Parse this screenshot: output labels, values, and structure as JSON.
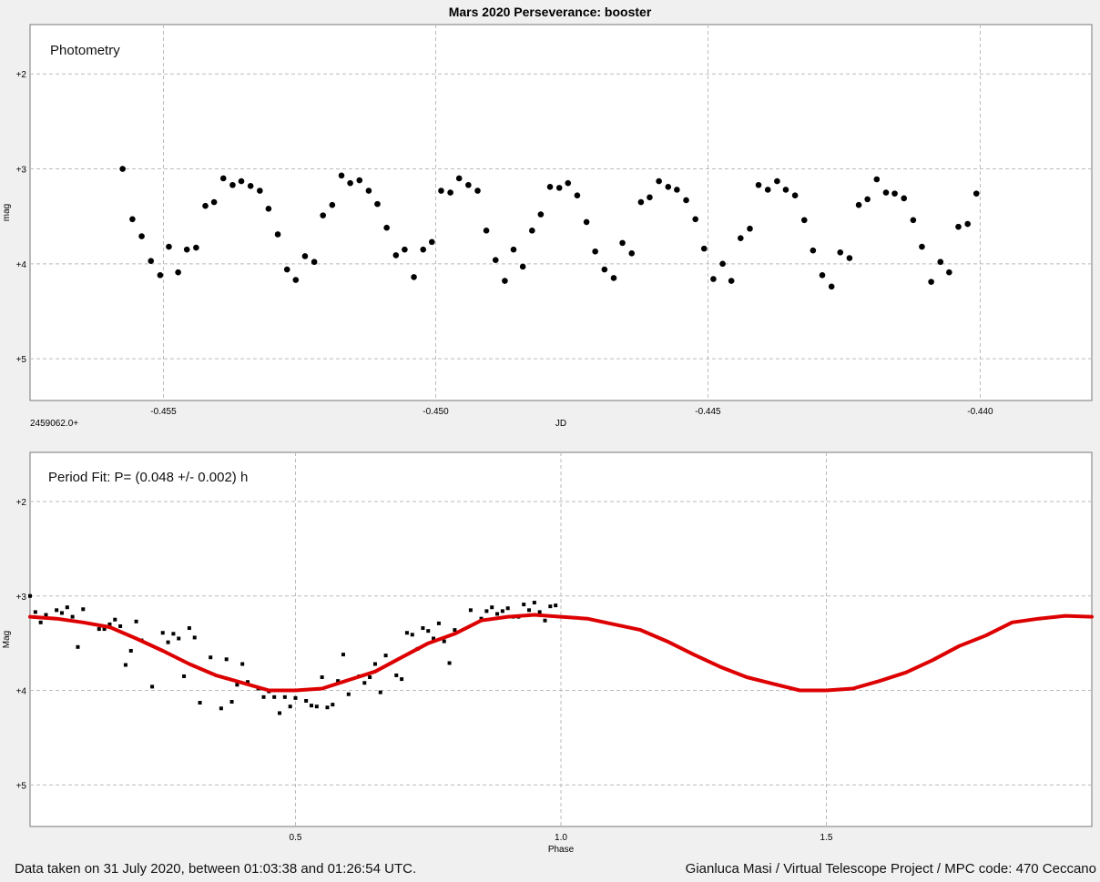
{
  "page_title": "Mars 2020 Perseverance: booster",
  "footer": {
    "left": "Data taken on 31 July 2020, between 01:03:38 and 01:26:54 UTC.",
    "right": "Gianluca Masi / Virtual Telescope Project / MPC code: 470 Ceccano"
  },
  "colors": {
    "background": "#f0f0f0",
    "plot_bg": "#ffffff",
    "points": "#000000",
    "fit": "#dd0000",
    "grid": "#bbbbbb"
  },
  "chart_data": [
    {
      "type": "scatter",
      "title": "Photometry",
      "xlabel": "JD",
      "ylabel": "mag",
      "x_offset_label": "2459062.0+",
      "xlim": [
        -0.45745,
        -0.43795
      ],
      "ylim": [
        5.44,
        1.48
      ],
      "y_inverted": true,
      "grid": true,
      "xticks": [
        -0.455,
        -0.45,
        -0.445,
        -0.44
      ],
      "xtick_labels": [
        "-0.455",
        "-0.450",
        "-0.445",
        "-0.440"
      ],
      "yticks": [
        2,
        3,
        4,
        5
      ],
      "ytick_labels": [
        "+2",
        "+3",
        "+4",
        "+5"
      ],
      "series": [
        {
          "x": [
            -0.45575,
            -0.45557,
            -0.4554,
            -0.45523,
            -0.45506,
            -0.4549,
            -0.45473,
            -0.45457,
            -0.4544,
            -0.45423,
            -0.45407,
            -0.4539,
            -0.45373,
            -0.45357,
            -0.4534,
            -0.45323,
            -0.45307,
            -0.4529,
            -0.45273,
            -0.45257,
            -0.4524,
            -0.45223,
            -0.45207,
            -0.4519,
            -0.45173,
            -0.45157,
            -0.4514,
            -0.45123,
            -0.45107,
            -0.4509,
            -0.45073,
            -0.45057,
            -0.4504,
            -0.45023,
            -0.45007,
            -0.4499,
            -0.44973,
            -0.44957,
            -0.4494,
            -0.44923,
            -0.44907,
            -0.4489,
            -0.44873,
            -0.44857,
            -0.4484,
            -0.44823,
            -0.44807,
            -0.4479,
            -0.44773,
            -0.44757,
            -0.4474,
            -0.44723,
            -0.44707,
            -0.4469,
            -0.44673,
            -0.44657,
            -0.4464,
            -0.44623,
            -0.44607,
            -0.4459,
            -0.44573,
            -0.44557,
            -0.4454,
            -0.44523,
            -0.44507,
            -0.4449,
            -0.44473,
            -0.44457,
            -0.4444,
            -0.44423,
            -0.44407,
            -0.4439,
            -0.44373,
            -0.44357,
            -0.4434,
            -0.44323,
            -0.44307,
            -0.4429,
            -0.44273,
            -0.44257,
            -0.4424,
            -0.44223,
            -0.44207,
            -0.4419,
            -0.44173,
            -0.44157,
            -0.4414,
            -0.44123,
            -0.44107,
            -0.4409,
            -0.44073,
            -0.44057,
            -0.4404,
            -0.44023,
            -0.44007
          ],
          "y": [
            3.0,
            3.53,
            3.71,
            3.97,
            4.12,
            3.82,
            4.09,
            3.85,
            3.83,
            3.39,
            3.35,
            3.1,
            3.17,
            3.13,
            3.18,
            3.23,
            3.42,
            3.69,
            4.06,
            4.17,
            3.92,
            3.98,
            3.49,
            3.38,
            3.07,
            3.15,
            3.12,
            3.23,
            3.37,
            3.62,
            3.91,
            3.85,
            4.14,
            3.85,
            3.77,
            3.23,
            3.25,
            3.1,
            3.17,
            3.23,
            3.65,
            3.96,
            4.18,
            3.85,
            4.03,
            3.65,
            3.48,
            3.19,
            3.2,
            3.15,
            3.28,
            3.56,
            3.87,
            4.06,
            4.15,
            3.78,
            3.89,
            3.35,
            3.3,
            3.13,
            3.19,
            3.22,
            3.33,
            3.53,
            3.84,
            4.16,
            4.0,
            4.18,
            3.73,
            3.63,
            3.17,
            3.22,
            3.13,
            3.22,
            3.28,
            3.54,
            3.86,
            4.12,
            4.24,
            3.88,
            3.94,
            3.38,
            3.32,
            3.11,
            3.25,
            3.26,
            3.31,
            3.54,
            3.82,
            4.19,
            3.98,
            4.09,
            3.61,
            3.58,
            3.26
          ]
        }
      ]
    },
    {
      "type": "scatter",
      "title": "Period Fit: P= (0.048 +/- 0.002) h",
      "xlabel": "Phase",
      "ylabel": "Mag",
      "xlim": [
        0,
        2
      ],
      "ylim": [
        5.44,
        1.48
      ],
      "y_inverted": true,
      "grid": true,
      "xticks": [
        0.5,
        1.0,
        1.5
      ],
      "xtick_labels": [
        "0.5",
        "1.0",
        "1.5"
      ],
      "yticks": [
        2,
        3,
        4,
        5
      ],
      "ytick_labels": [
        "+2",
        "+3",
        "+4",
        "+5"
      ],
      "series": [
        {
          "x": [
            0.0,
            0.01,
            0.02,
            0.03,
            0.05,
            0.06,
            0.07,
            0.08,
            0.09,
            0.1,
            0.13,
            0.14,
            0.15,
            0.16,
            0.17,
            0.18,
            0.19,
            0.2,
            0.21,
            0.23,
            0.25,
            0.26,
            0.27,
            0.28,
            0.29,
            0.3,
            0.31,
            0.32,
            0.34,
            0.36,
            0.37,
            0.38,
            0.39,
            0.4,
            0.41,
            0.43,
            0.44,
            0.45,
            0.46,
            0.47,
            0.48,
            0.49,
            0.5,
            0.52,
            0.53,
            0.54,
            0.55,
            0.56,
            0.57,
            0.58,
            0.59,
            0.6,
            0.62,
            0.63,
            0.64,
            0.65,
            0.66,
            0.67,
            0.69,
            0.7,
            0.71,
            0.72,
            0.73,
            0.74,
            0.75,
            0.76,
            0.77,
            0.78,
            0.79,
            0.8,
            0.83,
            0.85,
            0.86,
            0.87,
            0.88,
            0.89,
            0.9,
            0.91,
            0.92,
            0.93,
            0.94,
            0.95,
            0.96,
            0.97,
            0.98,
            0.99
          ],
          "y": [
            3.0,
            3.17,
            3.28,
            3.2,
            3.15,
            3.18,
            3.12,
            3.22,
            3.54,
            3.14,
            3.35,
            3.35,
            3.3,
            3.25,
            3.32,
            3.73,
            3.58,
            3.27,
            3.47,
            3.96,
            3.39,
            3.49,
            3.4,
            3.45,
            3.85,
            3.34,
            3.44,
            4.13,
            3.65,
            4.19,
            3.67,
            4.12,
            3.94,
            3.72,
            3.91,
            3.98,
            4.07,
            4.01,
            4.07,
            4.24,
            4.07,
            4.17,
            4.08,
            4.11,
            4.16,
            4.17,
            3.86,
            4.18,
            4.15,
            3.9,
            3.62,
            4.04,
            3.85,
            3.92,
            3.86,
            3.72,
            4.02,
            3.63,
            3.84,
            3.88,
            3.39,
            3.41,
            3.56,
            3.34,
            3.37,
            3.45,
            3.29,
            3.48,
            3.71,
            3.36,
            3.15,
            3.24,
            3.16,
            3.12,
            3.19,
            3.16,
            3.13,
            3.22,
            3.22,
            3.09,
            3.15,
            3.07,
            3.17,
            3.26,
            3.11,
            3.1
          ]
        },
        {
          "name": "fit",
          "x": [
            0.0,
            0.05,
            0.1,
            0.15,
            0.2,
            0.25,
            0.3,
            0.35,
            0.4,
            0.45,
            0.5,
            0.55,
            0.6,
            0.65,
            0.7,
            0.75,
            0.8,
            0.85,
            0.9,
            0.95,
            1.0,
            1.05,
            1.1,
            1.15,
            1.2,
            1.25,
            1.3,
            1.35,
            1.4,
            1.45,
            1.5,
            1.55,
            1.6,
            1.65,
            1.7,
            1.75,
            1.8,
            1.85,
            1.9,
            1.95,
            2.0
          ],
          "y": [
            3.22,
            3.24,
            3.28,
            3.33,
            3.45,
            3.58,
            3.72,
            3.84,
            3.92,
            4.0,
            4.0,
            3.98,
            3.89,
            3.8,
            3.65,
            3.5,
            3.4,
            3.26,
            3.22,
            3.2,
            3.22,
            3.24,
            3.3,
            3.36,
            3.48,
            3.62,
            3.75,
            3.86,
            3.93,
            4.0,
            4.0,
            3.98,
            3.9,
            3.81,
            3.68,
            3.53,
            3.42,
            3.28,
            3.24,
            3.21,
            3.22
          ]
        }
      ]
    }
  ]
}
